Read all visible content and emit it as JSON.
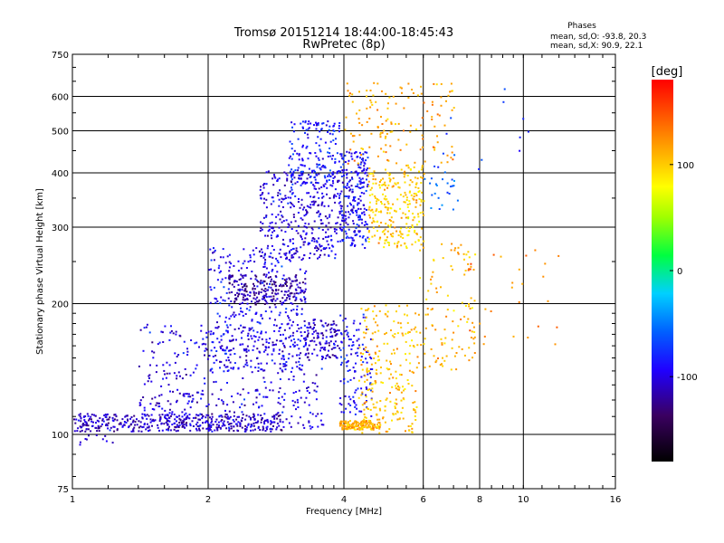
{
  "chart_data": {
    "type": "scatter",
    "title": "Tromsø 20151214 18:44:00-18:45:43",
    "subtitle": "RwPretec (8p)",
    "xlabel": "Frequency [MHz]",
    "ylabel": "Stationary phase Virtual Height [km]",
    "x_scale": "log",
    "y_scale": "log",
    "xlim": [
      1,
      16
    ],
    "ylim": [
      75,
      750
    ],
    "x_ticks": [
      1,
      2,
      4,
      6,
      8,
      10,
      16
    ],
    "x_tick_labels": [
      "1",
      "2",
      "4",
      "6",
      "8",
      "10",
      "16"
    ],
    "y_ticks": [
      75,
      100,
      200,
      300,
      400,
      500,
      600,
      750
    ],
    "y_tick_labels": [
      "75",
      "100",
      "200",
      "300",
      "400",
      "500",
      "600",
      "750"
    ],
    "grid": true,
    "colorbar": {
      "label": "[deg]",
      "range": [
        -180,
        180
      ],
      "ticks": [
        -100,
        0,
        100
      ],
      "tick_labels": [
        "-100",
        "0",
        "100"
      ]
    },
    "stats": {
      "heading": "Phases",
      "line_o": "mean, sd,O: -93.8, 20.3",
      "line_x": "mean, sd,X:  90.9, 22.1"
    },
    "point_groups": [
      {
        "f": [
          1.0,
          2.9
        ],
        "h": [
          102,
          112
        ],
        "phase": -110,
        "n": 420
      },
      {
        "f": [
          1.0,
          1.35
        ],
        "h": [
          93,
          100
        ],
        "phase": -105,
        "n": 10
      },
      {
        "f": [
          1.4,
          3.6
        ],
        "h": [
          103,
          180
        ],
        "phase": -100,
        "n": 420
      },
      {
        "f": [
          2.0,
          3.3
        ],
        "h": [
          140,
          270
        ],
        "phase": -95,
        "n": 380
      },
      {
        "f": [
          2.2,
          3.3
        ],
        "h": [
          200,
          235
        ],
        "phase": -120,
        "n": 200
      },
      {
        "f": [
          2.6,
          3.9
        ],
        "h": [
          255,
          410
        ],
        "phase": -100,
        "n": 360
      },
      {
        "f": [
          3.0,
          3.9
        ],
        "h": [
          380,
          530
        ],
        "phase": -85,
        "n": 160
      },
      {
        "f": [
          3.3,
          3.9
        ],
        "h": [
          150,
          185
        ],
        "phase": -110,
        "n": 100
      },
      {
        "f": [
          3.9,
          4.5
        ],
        "h": [
          270,
          450
        ],
        "phase": -90,
        "n": 240
      },
      {
        "f": [
          3.9,
          4.6
        ],
        "h": [
          110,
          190
        ],
        "phase": -90,
        "n": 120
      },
      {
        "f": [
          3.9,
          4.8
        ],
        "h": [
          103,
          108
        ],
        "phase": 110,
        "n": 140
      },
      {
        "f": [
          4.3,
          5.8
        ],
        "h": [
          100,
          200
        ],
        "phase": 105,
        "n": 240
      },
      {
        "f": [
          4.5,
          6.0
        ],
        "h": [
          270,
          420
        ],
        "phase": 100,
        "n": 260
      },
      {
        "f": [
          4.0,
          7.0
        ],
        "h": [
          420,
          650
        ],
        "phase": 115,
        "n": 140
      },
      {
        "f": [
          5.8,
          7.8
        ],
        "h": [
          140,
          280
        ],
        "phase": 110,
        "n": 110
      },
      {
        "f": [
          6.0,
          7.2
        ],
        "h": [
          330,
          420
        ],
        "phase": -60,
        "n": 25
      },
      {
        "f": [
          6.5,
          11.5
        ],
        "h": [
          400,
          650
        ],
        "phase": -80,
        "n": 12
      },
      {
        "f": [
          7.5,
          12.0
        ],
        "h": [
          160,
          280
        ],
        "phase": 130,
        "n": 30
      }
    ]
  }
}
